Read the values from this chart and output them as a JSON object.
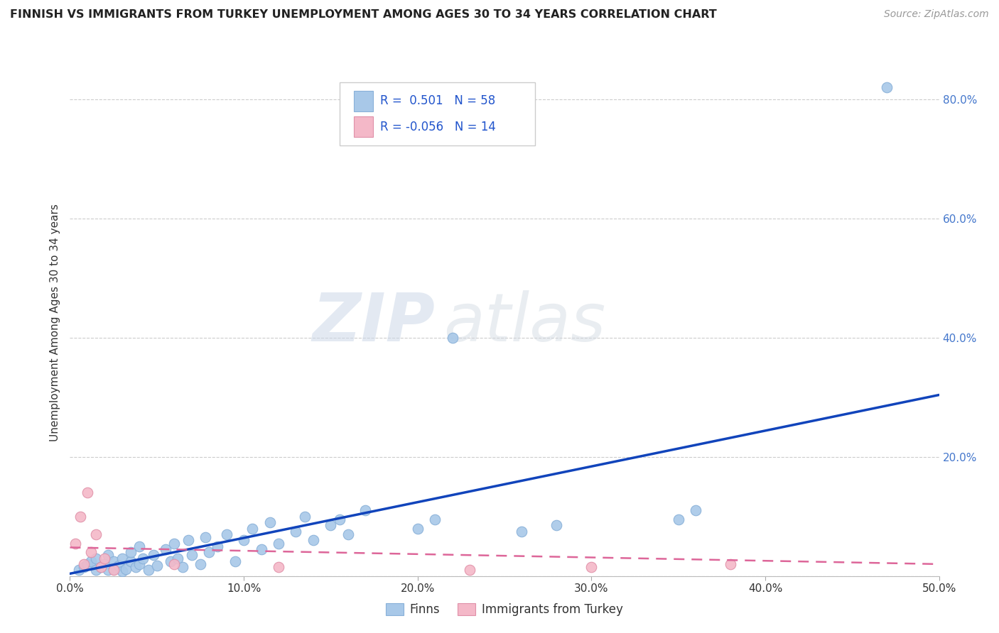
{
  "title": "FINNISH VS IMMIGRANTS FROM TURKEY UNEMPLOYMENT AMONG AGES 30 TO 34 YEARS CORRELATION CHART",
  "source": "Source: ZipAtlas.com",
  "ylabel": "Unemployment Among Ages 30 to 34 years",
  "xlim": [
    0.0,
    0.5
  ],
  "ylim": [
    0.0,
    0.85
  ],
  "x_ticks": [
    0.0,
    0.1,
    0.2,
    0.3,
    0.4,
    0.5
  ],
  "x_tick_labels": [
    "0.0%",
    "10.0%",
    "20.0%",
    "30.0%",
    "40.0%",
    "50.0%"
  ],
  "y_ticks": [
    0.0,
    0.2,
    0.4,
    0.6,
    0.8
  ],
  "y_tick_labels": [
    "",
    "20.0%",
    "40.0%",
    "60.0%",
    "80.0%"
  ],
  "finns_color": "#a8c8e8",
  "immigrants_color": "#f4b8c8",
  "finns_edge_color": "#88b0d8",
  "immigrants_edge_color": "#e090a8",
  "finns_line_color": "#1144bb",
  "immigrants_line_color": "#dd6699",
  "R_finns": 0.501,
  "N_finns": 58,
  "R_immigrants": -0.056,
  "N_immigrants": 14,
  "legend_label_finns": "Finns",
  "legend_label_immigrants": "Immigrants from Turkey",
  "watermark_zip": "ZIP",
  "watermark_atlas": "atlas",
  "finns_scatter_x": [
    0.005,
    0.008,
    0.01,
    0.012,
    0.015,
    0.015,
    0.018,
    0.02,
    0.022,
    0.022,
    0.025,
    0.025,
    0.028,
    0.03,
    0.03,
    0.032,
    0.035,
    0.035,
    0.038,
    0.04,
    0.04,
    0.042,
    0.045,
    0.048,
    0.05,
    0.055,
    0.058,
    0.06,
    0.062,
    0.065,
    0.068,
    0.07,
    0.075,
    0.078,
    0.08,
    0.085,
    0.09,
    0.095,
    0.1,
    0.105,
    0.11,
    0.115,
    0.12,
    0.13,
    0.135,
    0.14,
    0.15,
    0.155,
    0.16,
    0.17,
    0.2,
    0.21,
    0.22,
    0.26,
    0.28,
    0.35,
    0.36,
    0.47
  ],
  "finns_scatter_y": [
    0.01,
    0.015,
    0.02,
    0.025,
    0.01,
    0.03,
    0.015,
    0.02,
    0.01,
    0.035,
    0.012,
    0.025,
    0.018,
    0.008,
    0.03,
    0.012,
    0.025,
    0.04,
    0.015,
    0.02,
    0.05,
    0.03,
    0.01,
    0.035,
    0.018,
    0.045,
    0.025,
    0.055,
    0.03,
    0.015,
    0.06,
    0.035,
    0.02,
    0.065,
    0.04,
    0.05,
    0.07,
    0.025,
    0.06,
    0.08,
    0.045,
    0.09,
    0.055,
    0.075,
    0.1,
    0.06,
    0.085,
    0.095,
    0.07,
    0.11,
    0.08,
    0.095,
    0.4,
    0.075,
    0.085,
    0.095,
    0.11,
    0.82
  ],
  "immigrants_scatter_x": [
    0.003,
    0.006,
    0.008,
    0.01,
    0.012,
    0.015,
    0.018,
    0.02,
    0.025,
    0.06,
    0.12,
    0.23,
    0.3,
    0.38
  ],
  "immigrants_scatter_y": [
    0.055,
    0.1,
    0.02,
    0.14,
    0.04,
    0.07,
    0.015,
    0.03,
    0.01,
    0.02,
    0.015,
    0.01,
    0.015,
    0.02
  ],
  "finns_trendline_x": [
    0.0,
    0.5
  ],
  "finns_trendline_y": [
    0.004,
    0.304
  ],
  "immigrants_trendline_x": [
    0.0,
    0.5
  ],
  "immigrants_trendline_y": [
    0.048,
    0.02
  ]
}
